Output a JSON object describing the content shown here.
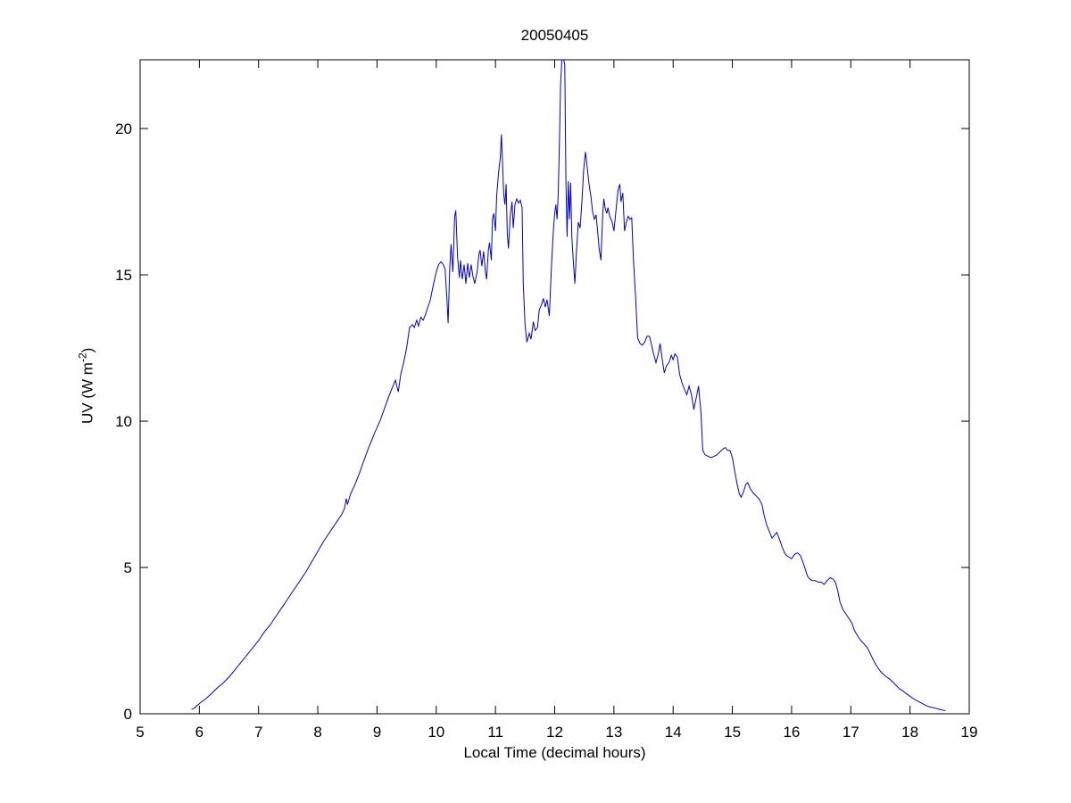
{
  "figure": {
    "title": "20050405",
    "xlabel": "Local Time (decimal hours)",
    "ylabel_prefix": "UV (W m",
    "ylabel_sup": "-2",
    "ylabel_suffix": ")"
  },
  "colors": {
    "line": "#0000CC",
    "axis": "#000000",
    "background": "#FFFFFF"
  },
  "chart_data": {
    "type": "line",
    "title": "20050405",
    "xlabel": "Local Time (decimal hours)",
    "ylabel": "UV (W m⁻²)",
    "xlim": [
      5,
      19
    ],
    "ylim": [
      0,
      22.35
    ],
    "xticks": [
      5,
      6,
      7,
      8,
      9,
      10,
      11,
      12,
      13,
      14,
      15,
      16,
      17,
      18,
      19
    ],
    "yticks": [
      0,
      5,
      10,
      15,
      20
    ],
    "grid": false,
    "box": true,
    "line_color": "#0000CC",
    "series": [
      {
        "points": [
          [
            5.87,
            0.15
          ],
          [
            5.92,
            0.2
          ],
          [
            6.0,
            0.35
          ],
          [
            6.1,
            0.5
          ],
          [
            6.2,
            0.68
          ],
          [
            6.3,
            0.88
          ],
          [
            6.4,
            1.05
          ],
          [
            6.5,
            1.25
          ],
          [
            6.6,
            1.5
          ],
          [
            6.7,
            1.75
          ],
          [
            6.8,
            2.0
          ],
          [
            6.9,
            2.25
          ],
          [
            7.0,
            2.5
          ],
          [
            7.1,
            2.8
          ],
          [
            7.2,
            3.05
          ],
          [
            7.3,
            3.35
          ],
          [
            7.4,
            3.65
          ],
          [
            7.5,
            3.95
          ],
          [
            7.6,
            4.25
          ],
          [
            7.7,
            4.55
          ],
          [
            7.8,
            4.85
          ],
          [
            7.9,
            5.2
          ],
          [
            8.0,
            5.55
          ],
          [
            8.1,
            5.9
          ],
          [
            8.2,
            6.2
          ],
          [
            8.3,
            6.5
          ],
          [
            8.4,
            6.8
          ],
          [
            8.45,
            7.0
          ],
          [
            8.48,
            7.35
          ],
          [
            8.5,
            7.15
          ],
          [
            8.55,
            7.5
          ],
          [
            8.62,
            7.8
          ],
          [
            8.7,
            8.2
          ],
          [
            8.76,
            8.55
          ],
          [
            8.85,
            9.05
          ],
          [
            8.96,
            9.6
          ],
          [
            9.05,
            10.0
          ],
          [
            9.12,
            10.4
          ],
          [
            9.2,
            10.85
          ],
          [
            9.27,
            11.2
          ],
          [
            9.31,
            11.4
          ],
          [
            9.34,
            11.15
          ],
          [
            9.36,
            11.0
          ],
          [
            9.4,
            11.6
          ],
          [
            9.45,
            12.0
          ],
          [
            9.5,
            12.5
          ],
          [
            9.55,
            13.2
          ],
          [
            9.6,
            13.3
          ],
          [
            9.63,
            13.2
          ],
          [
            9.67,
            13.45
          ],
          [
            9.7,
            13.25
          ],
          [
            9.74,
            13.55
          ],
          [
            9.78,
            13.45
          ],
          [
            9.82,
            13.65
          ],
          [
            9.86,
            13.9
          ],
          [
            9.9,
            14.15
          ],
          [
            9.95,
            14.65
          ],
          [
            10.0,
            15.1
          ],
          [
            10.04,
            15.35
          ],
          [
            10.08,
            15.45
          ],
          [
            10.12,
            15.35
          ],
          [
            10.15,
            15.2
          ],
          [
            10.18,
            14.2
          ],
          [
            10.2,
            13.35
          ],
          [
            10.23,
            15.3
          ],
          [
            10.25,
            16.05
          ],
          [
            10.28,
            15.1
          ],
          [
            10.31,
            17.0
          ],
          [
            10.33,
            17.2
          ],
          [
            10.36,
            15.6
          ],
          [
            10.39,
            14.9
          ],
          [
            10.41,
            15.5
          ],
          [
            10.44,
            14.85
          ],
          [
            10.47,
            15.35
          ],
          [
            10.5,
            14.7
          ],
          [
            10.53,
            15.4
          ],
          [
            10.56,
            14.9
          ],
          [
            10.59,
            15.35
          ],
          [
            10.62,
            14.95
          ],
          [
            10.65,
            14.7
          ],
          [
            10.69,
            15.1
          ],
          [
            10.72,
            15.7
          ],
          [
            10.74,
            15.85
          ],
          [
            10.77,
            15.3
          ],
          [
            10.8,
            15.8
          ],
          [
            10.83,
            15.1
          ],
          [
            10.85,
            14.85
          ],
          [
            10.88,
            15.85
          ],
          [
            10.9,
            16.1
          ],
          [
            10.93,
            15.5
          ],
          [
            10.95,
            16.9
          ],
          [
            10.97,
            17.1
          ],
          [
            11.0,
            16.5
          ],
          [
            11.02,
            17.7
          ],
          [
            11.05,
            18.45
          ],
          [
            11.08,
            19.0
          ],
          [
            11.1,
            19.8
          ],
          [
            11.12,
            18.8
          ],
          [
            11.14,
            17.75
          ],
          [
            11.16,
            17.4
          ],
          [
            11.18,
            18.1
          ],
          [
            11.2,
            16.4
          ],
          [
            11.22,
            15.9
          ],
          [
            11.25,
            17.0
          ],
          [
            11.28,
            17.5
          ],
          [
            11.3,
            16.6
          ],
          [
            11.33,
            17.4
          ],
          [
            11.36,
            17.6
          ],
          [
            11.39,
            17.45
          ],
          [
            11.42,
            17.55
          ],
          [
            11.45,
            17.3
          ],
          [
            11.47,
            14.7
          ],
          [
            11.5,
            13.3
          ],
          [
            11.53,
            12.7
          ],
          [
            11.57,
            13.0
          ],
          [
            11.6,
            12.8
          ],
          [
            11.64,
            13.4
          ],
          [
            11.67,
            13.1
          ],
          [
            11.71,
            13.2
          ],
          [
            11.74,
            13.8
          ],
          [
            11.78,
            14.0
          ],
          [
            11.81,
            14.2
          ],
          [
            11.84,
            13.9
          ],
          [
            11.87,
            14.15
          ],
          [
            11.91,
            13.6
          ],
          [
            11.95,
            15.5
          ],
          [
            11.98,
            16.6
          ],
          [
            12.0,
            17.1
          ],
          [
            12.02,
            17.4
          ],
          [
            12.04,
            16.9
          ],
          [
            12.06,
            17.8
          ],
          [
            12.08,
            19.5
          ],
          [
            12.1,
            21.5
          ],
          [
            12.12,
            22.4
          ],
          [
            12.15,
            22.4
          ],
          [
            12.17,
            22.2
          ],
          [
            12.19,
            18.2
          ],
          [
            12.21,
            16.3
          ],
          [
            12.23,
            18.2
          ],
          [
            12.25,
            16.9
          ],
          [
            12.27,
            18.15
          ],
          [
            12.29,
            16.3
          ],
          [
            12.31,
            15.6
          ],
          [
            12.34,
            14.7
          ],
          [
            12.37,
            15.9
          ],
          [
            12.4,
            16.8
          ],
          [
            12.43,
            16.6
          ],
          [
            12.46,
            17.5
          ],
          [
            12.49,
            18.6
          ],
          [
            12.52,
            19.2
          ],
          [
            12.55,
            18.65
          ],
          [
            12.58,
            18.1
          ],
          [
            12.61,
            17.7
          ],
          [
            12.64,
            17.15
          ],
          [
            12.67,
            16.9
          ],
          [
            12.7,
            17.05
          ],
          [
            12.72,
            16.6
          ],
          [
            12.75,
            15.9
          ],
          [
            12.78,
            15.5
          ],
          [
            12.81,
            17.0
          ],
          [
            12.83,
            17.6
          ],
          [
            12.85,
            17.3
          ],
          [
            12.88,
            17.1
          ],
          [
            12.9,
            17.3
          ],
          [
            12.93,
            17.0
          ],
          [
            12.97,
            16.8
          ],
          [
            13.0,
            16.5
          ],
          [
            13.04,
            17.3
          ],
          [
            13.07,
            17.9
          ],
          [
            13.1,
            18.1
          ],
          [
            13.12,
            17.5
          ],
          [
            13.15,
            17.8
          ],
          [
            13.18,
            16.5
          ],
          [
            13.21,
            16.8
          ],
          [
            13.24,
            17.0
          ],
          [
            13.27,
            16.9
          ],
          [
            13.3,
            16.95
          ],
          [
            13.33,
            15.5
          ],
          [
            13.37,
            14.1
          ],
          [
            13.4,
            12.85
          ],
          [
            13.44,
            12.65
          ],
          [
            13.48,
            12.6
          ],
          [
            13.52,
            12.7
          ],
          [
            13.56,
            12.9
          ],
          [
            13.6,
            12.9
          ],
          [
            13.63,
            12.65
          ],
          [
            13.67,
            12.3
          ],
          [
            13.71,
            12.0
          ],
          [
            13.75,
            12.3
          ],
          [
            13.78,
            12.65
          ],
          [
            13.82,
            12.05
          ],
          [
            13.85,
            11.65
          ],
          [
            13.89,
            11.9
          ],
          [
            13.93,
            12.0
          ],
          [
            13.97,
            12.25
          ],
          [
            14.0,
            12.1
          ],
          [
            14.03,
            12.3
          ],
          [
            14.07,
            12.2
          ],
          [
            14.11,
            11.6
          ],
          [
            14.15,
            11.3
          ],
          [
            14.19,
            11.1
          ],
          [
            14.23,
            10.9
          ],
          [
            14.27,
            11.2
          ],
          [
            14.31,
            10.9
          ],
          [
            14.35,
            10.4
          ],
          [
            14.39,
            10.8
          ],
          [
            14.43,
            11.2
          ],
          [
            14.47,
            10.3
          ],
          [
            14.5,
            9.0
          ],
          [
            14.54,
            8.85
          ],
          [
            14.59,
            8.8
          ],
          [
            14.64,
            8.75
          ],
          [
            14.69,
            8.8
          ],
          [
            14.74,
            8.85
          ],
          [
            14.79,
            8.95
          ],
          [
            14.84,
            9.05
          ],
          [
            14.88,
            9.1
          ],
          [
            14.92,
            9.0
          ],
          [
            14.96,
            9.0
          ],
          [
            15.0,
            8.75
          ],
          [
            15.04,
            8.3
          ],
          [
            15.08,
            7.85
          ],
          [
            15.12,
            7.5
          ],
          [
            15.15,
            7.4
          ],
          [
            15.19,
            7.6
          ],
          [
            15.23,
            7.85
          ],
          [
            15.26,
            7.9
          ],
          [
            15.3,
            7.7
          ],
          [
            15.35,
            7.55
          ],
          [
            15.4,
            7.45
          ],
          [
            15.45,
            7.35
          ],
          [
            15.5,
            7.15
          ],
          [
            15.54,
            6.75
          ],
          [
            15.58,
            6.45
          ],
          [
            15.63,
            6.2
          ],
          [
            15.67,
            6.0
          ],
          [
            15.71,
            6.1
          ],
          [
            15.75,
            6.2
          ],
          [
            15.79,
            6.0
          ],
          [
            15.84,
            5.7
          ],
          [
            15.88,
            5.5
          ],
          [
            15.92,
            5.4
          ],
          [
            15.96,
            5.35
          ],
          [
            16.0,
            5.3
          ],
          [
            16.05,
            5.45
          ],
          [
            16.1,
            5.5
          ],
          [
            16.15,
            5.4
          ],
          [
            16.19,
            5.2
          ],
          [
            16.23,
            4.95
          ],
          [
            16.27,
            4.7
          ],
          [
            16.31,
            4.6
          ],
          [
            16.35,
            4.55
          ],
          [
            16.4,
            4.55
          ],
          [
            16.45,
            4.5
          ],
          [
            16.5,
            4.5
          ],
          [
            16.55,
            4.42
          ],
          [
            16.6,
            4.55
          ],
          [
            16.65,
            4.65
          ],
          [
            16.7,
            4.6
          ],
          [
            16.74,
            4.5
          ],
          [
            16.78,
            4.2
          ],
          [
            16.82,
            3.8
          ],
          [
            16.87,
            3.55
          ],
          [
            16.92,
            3.4
          ],
          [
            16.97,
            3.25
          ],
          [
            17.02,
            3.1
          ],
          [
            17.06,
            2.85
          ],
          [
            17.12,
            2.65
          ],
          [
            17.17,
            2.5
          ],
          [
            17.22,
            2.4
          ],
          [
            17.28,
            2.25
          ],
          [
            17.33,
            2.05
          ],
          [
            17.39,
            1.8
          ],
          [
            17.44,
            1.62
          ],
          [
            17.5,
            1.45
          ],
          [
            17.55,
            1.35
          ],
          [
            17.61,
            1.25
          ],
          [
            17.66,
            1.18
          ],
          [
            17.7,
            1.1
          ],
          [
            17.76,
            0.98
          ],
          [
            17.82,
            0.86
          ],
          [
            17.88,
            0.78
          ],
          [
            17.94,
            0.68
          ],
          [
            18.0,
            0.6
          ],
          [
            18.07,
            0.5
          ],
          [
            18.14,
            0.42
          ],
          [
            18.2,
            0.36
          ],
          [
            18.27,
            0.28
          ],
          [
            18.34,
            0.23
          ],
          [
            18.41,
            0.2
          ],
          [
            18.48,
            0.16
          ],
          [
            18.54,
            0.13
          ],
          [
            18.6,
            0.1
          ]
        ]
      }
    ]
  }
}
